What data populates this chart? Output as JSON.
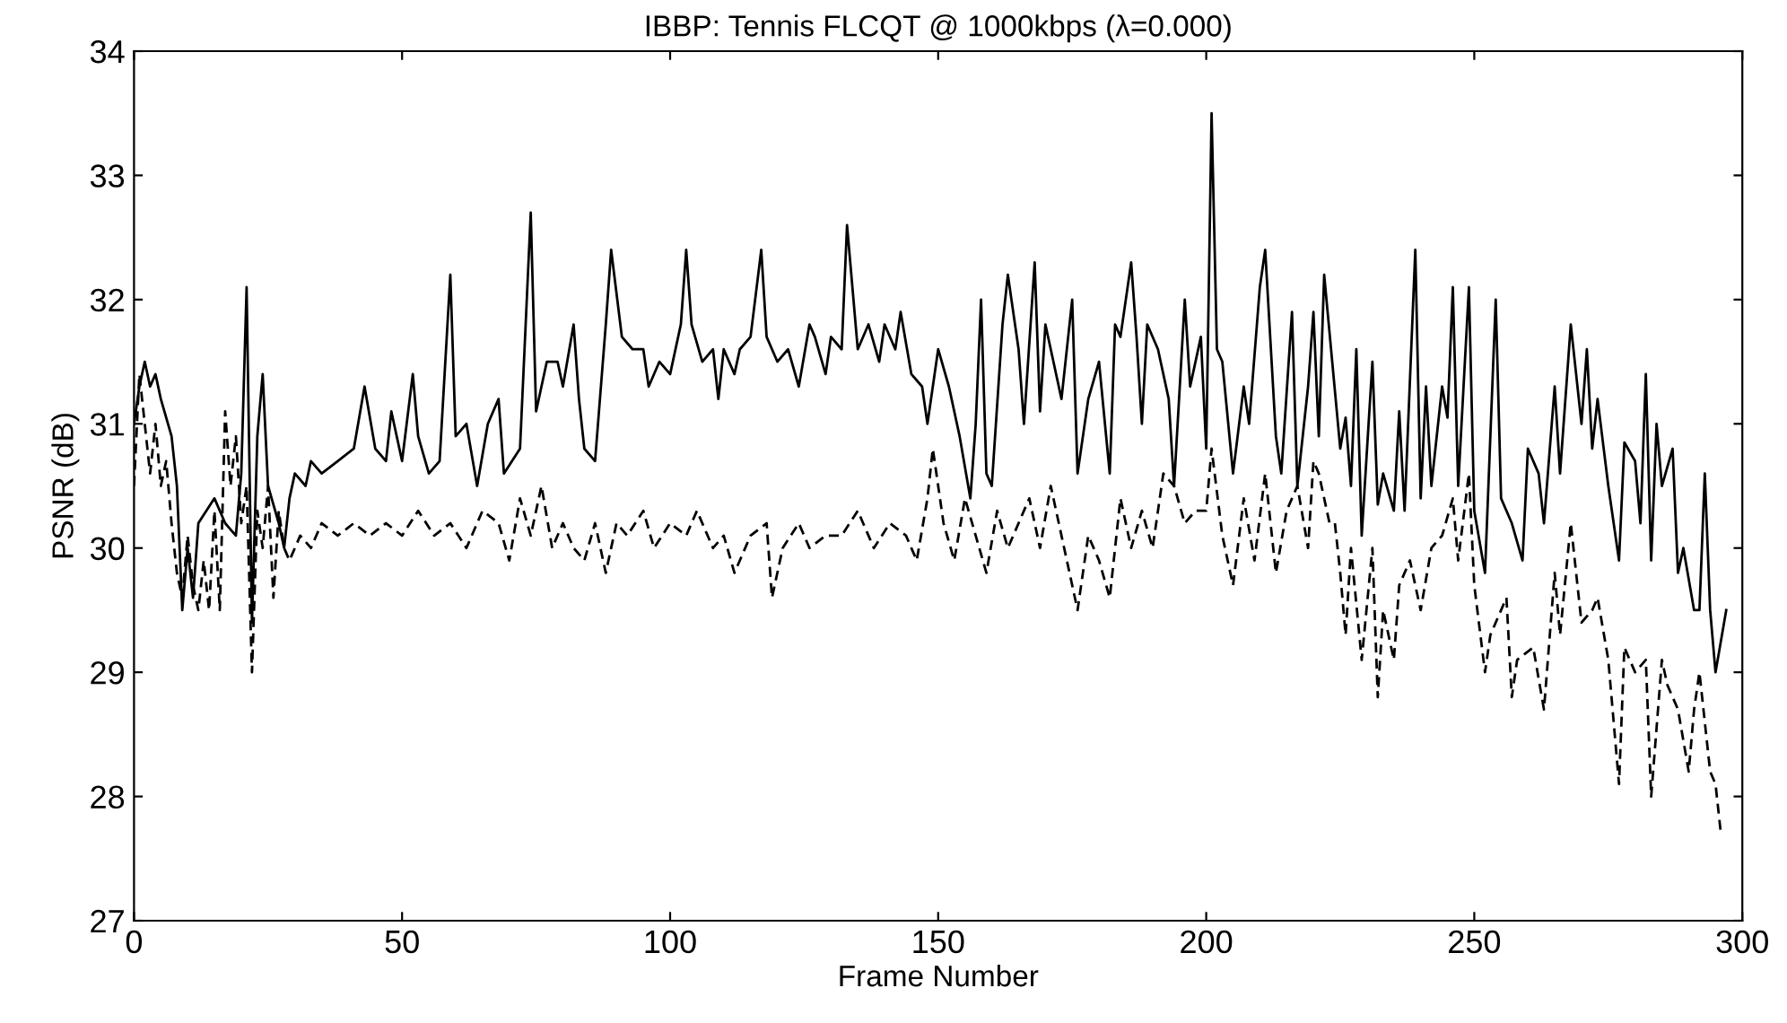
{
  "chart_data": {
    "type": "line",
    "title": "IBBP: Tennis FLCQT @ 1000kbps (λ=0.000)",
    "xlabel": "Frame Number",
    "ylabel": "PSNR (dB)",
    "xlim": [
      0,
      300
    ],
    "xticks": [
      0,
      50,
      100,
      150,
      200,
      250,
      300
    ],
    "ylim": [
      27,
      34
    ],
    "yticks": [
      27,
      28,
      29,
      30,
      31,
      32,
      33,
      34
    ],
    "grid": false,
    "legend": false,
    "marker": "none",
    "series": [
      {
        "color": "#000000",
        "line_style": "solid",
        "x": [
          0,
          1,
          2,
          3,
          4,
          5,
          7,
          8,
          9,
          10,
          11,
          12,
          15,
          17,
          19,
          20,
          21,
          22,
          23,
          24,
          25,
          27,
          28,
          29,
          30,
          32,
          33,
          35,
          38,
          41,
          43,
          45,
          47,
          48,
          50,
          52,
          53,
          55,
          57,
          59,
          60,
          62,
          64,
          66,
          68,
          69,
          72,
          74,
          75,
          77,
          79,
          80,
          82,
          83,
          84,
          86,
          88,
          89,
          91,
          93,
          95,
          96,
          98,
          100,
          102,
          103,
          104,
          106,
          108,
          109,
          110,
          112,
          113,
          115,
          117,
          118,
          120,
          122,
          124,
          126,
          127,
          129,
          130,
          132,
          133,
          135,
          137,
          139,
          140,
          142,
          143,
          145,
          147,
          148,
          150,
          152,
          154,
          156,
          157,
          158,
          159,
          160,
          162,
          163,
          165,
          166,
          168,
          169,
          170,
          171,
          173,
          175,
          176,
          178,
          180,
          182,
          183,
          184,
          186,
          187,
          188,
          189,
          191,
          193,
          194,
          196,
          197,
          199,
          200,
          201,
          202,
          203,
          205,
          207,
          208,
          210,
          211,
          213,
          214,
          216,
          217,
          219,
          220,
          221,
          222,
          225,
          226,
          227,
          228,
          229,
          231,
          232,
          233,
          235,
          236,
          237,
          239,
          240,
          241,
          242,
          244,
          245,
          246,
          247,
          249,
          250,
          252,
          254,
          255,
          257,
          259,
          260,
          262,
          263,
          265,
          266,
          268,
          270,
          271,
          272,
          273,
          275,
          277,
          278,
          280,
          281,
          282,
          283,
          284,
          285,
          287,
          288,
          289,
          291,
          292,
          293,
          294,
          295,
          297
        ],
        "values": [
          31.0,
          31.3,
          31.5,
          31.3,
          31.4,
          31.2,
          30.9,
          30.5,
          29.5,
          30.0,
          29.6,
          30.2,
          30.4,
          30.2,
          30.1,
          30.6,
          32.1,
          29.4,
          30.9,
          31.4,
          30.5,
          30.2,
          30.0,
          30.4,
          30.6,
          30.5,
          30.7,
          30.6,
          30.7,
          30.8,
          31.3,
          30.8,
          30.7,
          31.1,
          30.7,
          31.4,
          30.9,
          30.6,
          30.7,
          32.2,
          30.9,
          31.0,
          30.5,
          31.0,
          31.2,
          30.6,
          30.8,
          32.7,
          31.1,
          31.5,
          31.5,
          31.3,
          31.8,
          31.2,
          30.8,
          30.7,
          31.8,
          32.4,
          31.7,
          31.6,
          31.6,
          31.3,
          31.5,
          31.4,
          31.8,
          32.4,
          31.8,
          31.5,
          31.6,
          31.2,
          31.6,
          31.4,
          31.6,
          31.7,
          32.4,
          31.7,
          31.5,
          31.6,
          31.3,
          31.8,
          31.7,
          31.4,
          31.7,
          31.6,
          32.6,
          31.6,
          31.8,
          31.5,
          31.8,
          31.6,
          31.9,
          31.4,
          31.3,
          31.0,
          31.6,
          31.3,
          30.9,
          30.4,
          31.0,
          32.0,
          30.6,
          30.5,
          31.8,
          32.2,
          31.6,
          31.0,
          32.3,
          31.1,
          31.8,
          31.6,
          31.2,
          32.0,
          30.6,
          31.2,
          31.5,
          30.6,
          31.8,
          31.7,
          32.3,
          31.7,
          31.0,
          31.8,
          31.6,
          31.2,
          30.5,
          32.0,
          31.3,
          31.7,
          30.8,
          33.5,
          31.6,
          31.5,
          30.6,
          31.3,
          31.0,
          32.1,
          32.4,
          30.9,
          30.6,
          31.9,
          30.5,
          31.3,
          31.9,
          30.9,
          32.2,
          30.8,
          31.05,
          30.5,
          31.6,
          30.1,
          31.5,
          30.35,
          30.6,
          30.3,
          31.1,
          30.3,
          32.4,
          30.4,
          31.3,
          30.5,
          31.3,
          31.05,
          32.1,
          30.5,
          32.1,
          30.3,
          29.8,
          32.0,
          30.4,
          30.2,
          29.9,
          30.8,
          30.6,
          30.2,
          31.3,
          30.6,
          31.8,
          31.0,
          31.6,
          30.8,
          31.2,
          30.5,
          29.9,
          30.85,
          30.7,
          30.2,
          31.4,
          29.9,
          31.0,
          30.5,
          30.8,
          29.8,
          30.0,
          29.5,
          29.5,
          30.6,
          29.5,
          29.0,
          29.5
        ]
      },
      {
        "color": "#000000",
        "line_style": "dashed",
        "x": [
          0,
          1,
          2,
          3,
          4,
          5,
          6,
          7,
          8,
          9,
          10,
          11,
          12,
          13,
          14,
          15,
          16,
          17,
          18,
          19,
          20,
          21,
          22,
          23,
          24,
          25,
          26,
          27,
          28,
          29,
          31,
          33,
          35,
          38,
          41,
          44,
          47,
          50,
          53,
          56,
          59,
          62,
          65,
          68,
          70,
          72,
          74,
          76,
          78,
          80,
          82,
          84,
          86,
          88,
          90,
          92,
          95,
          97,
          100,
          103,
          105,
          108,
          110,
          112,
          115,
          118,
          119,
          121,
          124,
          126,
          129,
          132,
          135,
          138,
          141,
          144,
          146,
          148,
          149,
          151,
          153,
          155,
          157,
          159,
          161,
          163,
          165,
          167,
          169,
          171,
          173,
          175,
          176,
          178,
          180,
          182,
          184,
          186,
          188,
          190,
          192,
          194,
          196,
          198,
          200,
          201,
          203,
          205,
          207,
          209,
          211,
          213,
          215,
          217,
          219,
          220,
          221,
          223,
          224,
          225,
          226,
          227,
          229,
          231,
          232,
          233,
          235,
          236,
          238,
          240,
          242,
          244,
          246,
          247,
          249,
          250,
          252,
          253,
          256,
          257,
          258,
          261,
          263,
          265,
          266,
          268,
          270,
          272,
          273,
          275,
          277,
          278,
          280,
          282,
          283,
          285,
          286,
          288,
          290,
          291,
          292,
          294,
          295,
          296
        ],
        "values": [
          30.5,
          31.4,
          31.0,
          30.6,
          31.0,
          30.5,
          30.7,
          30.2,
          29.8,
          29.6,
          30.1,
          29.7,
          29.5,
          29.9,
          29.5,
          30.3,
          29.5,
          31.1,
          30.5,
          30.9,
          30.2,
          30.5,
          29.0,
          30.3,
          30.0,
          30.5,
          29.6,
          30.3,
          30.0,
          29.9,
          30.1,
          30.0,
          30.2,
          30.1,
          30.2,
          30.1,
          30.2,
          30.1,
          30.3,
          30.1,
          30.2,
          30.0,
          30.3,
          30.2,
          29.9,
          30.4,
          30.1,
          30.5,
          30.0,
          30.2,
          30.0,
          29.9,
          30.2,
          29.8,
          30.2,
          30.1,
          30.3,
          30.0,
          30.2,
          30.1,
          30.3,
          30.0,
          30.1,
          29.8,
          30.1,
          30.2,
          29.6,
          30.0,
          30.2,
          30.0,
          30.1,
          30.1,
          30.3,
          30.0,
          30.2,
          30.1,
          29.9,
          30.4,
          30.8,
          30.2,
          29.9,
          30.4,
          30.1,
          29.8,
          30.3,
          30.0,
          30.2,
          30.4,
          30.0,
          30.5,
          30.1,
          29.7,
          29.5,
          30.1,
          29.9,
          29.6,
          30.4,
          30.0,
          30.3,
          30.0,
          30.6,
          30.5,
          30.2,
          30.3,
          30.3,
          30.8,
          30.1,
          29.7,
          30.4,
          29.9,
          30.6,
          29.8,
          30.3,
          30.5,
          30.0,
          30.7,
          30.6,
          30.2,
          30.2,
          29.8,
          29.3,
          30.0,
          29.1,
          30.0,
          28.8,
          29.5,
          29.1,
          29.7,
          29.9,
          29.5,
          30.0,
          30.1,
          30.4,
          29.9,
          30.6,
          29.7,
          29.0,
          29.3,
          29.6,
          28.8,
          29.1,
          29.2,
          28.7,
          29.8,
          29.3,
          30.2,
          29.4,
          29.5,
          29.6,
          29.1,
          28.1,
          29.2,
          29.0,
          29.1,
          28.0,
          29.1,
          28.9,
          28.7,
          28.2,
          28.7,
          29.0,
          28.2,
          28.1,
          27.7
        ]
      }
    ]
  }
}
